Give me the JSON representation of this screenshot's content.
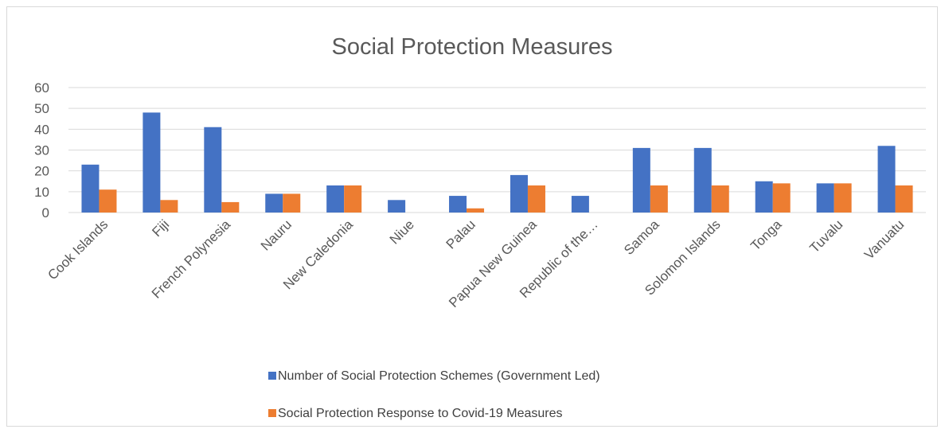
{
  "chart_data": {
    "type": "bar",
    "title": "Social Protection Measures",
    "xlabel": "",
    "ylabel": "",
    "ylim": [
      0,
      60
    ],
    "yticks": [
      0,
      10,
      20,
      30,
      40,
      50,
      60
    ],
    "grid": true,
    "legend_position": "bottom",
    "categories": [
      "Cook Islands",
      "Fiji",
      "French Polynesia",
      "Nauru",
      "New Caledonia",
      "Niue",
      "Palau",
      "Papua New Guinea",
      "Republic of the…",
      "Samoa",
      "Solomon Islands",
      "Tonga",
      "Tuvalu",
      "Vanuatu"
    ],
    "series": [
      {
        "name": "Number of Social Protection Schemes (Government Led)",
        "color": "#4472c4",
        "values": [
          23,
          48,
          41,
          9,
          13,
          6,
          8,
          18,
          8,
          31,
          31,
          15,
          14,
          32
        ]
      },
      {
        "name": "Social Protection Response to Covid-19 Measures",
        "color": "#ed7d31",
        "values": [
          11,
          6,
          5,
          9,
          13,
          0,
          2,
          13,
          0,
          13,
          13,
          14,
          14,
          13
        ]
      }
    ]
  }
}
